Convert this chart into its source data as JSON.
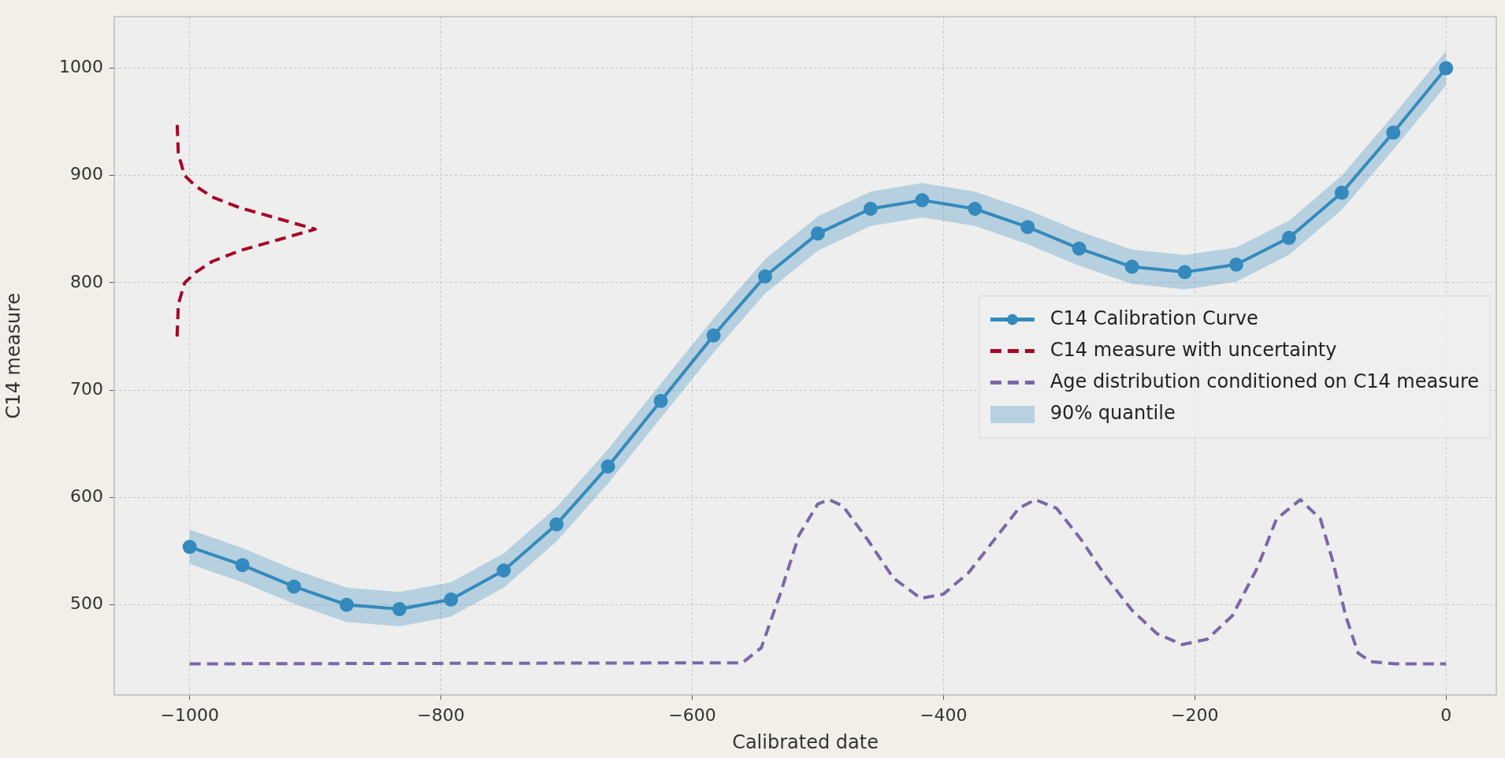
{
  "chart_data": {
    "type": "line",
    "xlabel": "Calibrated date",
    "ylabel": "C14 measure",
    "xlim": [
      -1060,
      40
    ],
    "ylim": [
      416,
      1048
    ],
    "xticks": [
      {
        "value": -1000,
        "label": "−1000"
      },
      {
        "value": -800,
        "label": "−800"
      },
      {
        "value": -600,
        "label": "−600"
      },
      {
        "value": -400,
        "label": "−400"
      },
      {
        "value": -200,
        "label": "−200"
      },
      0
    ],
    "yticks": [
      500,
      600,
      700,
      800,
      900,
      1000
    ],
    "grid": true,
    "legend": "center right",
    "annotations": [
      "90% quantile"
    ],
    "series": [
      {
        "name": "C14 Calibration Curve",
        "color": "#348abd",
        "marker": "circle",
        "line_style": "solid",
        "x": [
          -1000,
          -958,
          -917,
          -875,
          -833,
          -792,
          -750,
          -708,
          -667,
          -625,
          -583,
          -542,
          -500,
          -458,
          -417,
          -375,
          -333,
          -292,
          -250,
          -208,
          -167,
          -125,
          -83,
          -42,
          0
        ],
        "values": [
          554,
          537,
          517,
          500,
          496,
          505,
          532,
          575,
          629,
          690,
          751,
          806,
          846,
          869,
          877,
          869,
          852,
          832,
          815,
          810,
          817,
          842,
          884,
          940,
          1000
        ],
        "lower": [
          538,
          521,
          501,
          484,
          480,
          489,
          516,
          559,
          613,
          674,
          735,
          790,
          830,
          853,
          861,
          853,
          836,
          816,
          799,
          794,
          801,
          826,
          868,
          924,
          984
        ],
        "upper": [
          570,
          553,
          533,
          516,
          512,
          521,
          548,
          591,
          645,
          706,
          767,
          822,
          862,
          885,
          893,
          885,
          868,
          848,
          831,
          826,
          833,
          858,
          900,
          956,
          1016
        ]
      },
      {
        "name": "C14 measure with uncertainty",
        "color": "#a60628",
        "marker": "none",
        "line_style": "dashed",
        "x": [
          -1010,
          -1009,
          -1004,
          -995,
          -982,
          -960,
          -930,
          -900,
          -930,
          -960,
          -982,
          -995,
          -1004,
          -1009,
          -1010
        ],
        "values": [
          750,
          780,
          800,
          810,
          820,
          830,
          840,
          850,
          860,
          870,
          880,
          890,
          900,
          920,
          950
        ]
      },
      {
        "name": "Age distribution conditioned on C14 measure",
        "color": "#7a68a6",
        "marker": "none",
        "line_style": "dashed",
        "x": [
          -1000,
          -560,
          -545,
          -530,
          -515,
          -500,
          -491,
          -480,
          -460,
          -440,
          -418,
          -400,
          -380,
          -360,
          -340,
          -327,
          -310,
          -290,
          -270,
          -250,
          -230,
          -210,
          -190,
          -170,
          -150,
          -135,
          -116,
          -100,
          -90,
          -80,
          -70,
          -60,
          -40,
          0
        ],
        "values": [
          445,
          446,
          460,
          510,
          565,
          594,
          598,
          592,
          560,
          525,
          506,
          510,
          530,
          560,
          590,
          598,
          590,
          560,
          525,
          495,
          473,
          463,
          468,
          490,
          535,
          580,
          598,
          580,
          540,
          490,
          455,
          447,
          445,
          445
        ]
      }
    ]
  }
}
